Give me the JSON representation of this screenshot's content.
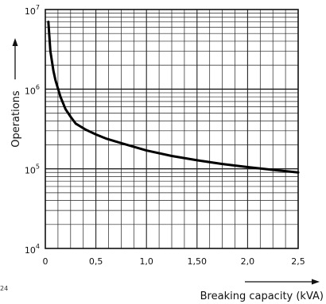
{
  "chart_data": {
    "type": "line",
    "xlabel": "Breaking capacity (kVA)",
    "ylabel": "Operations",
    "x_scale": "linear",
    "y_scale": "log",
    "xlim": [
      0,
      2.5
    ],
    "ylim": [
      10000,
      10000000
    ],
    "x_ticks": [
      {
        "value": 0,
        "label": "0"
      },
      {
        "value": 0.5,
        "label": "0,5"
      },
      {
        "value": 1.0,
        "label": "1,0"
      },
      {
        "value": 1.5,
        "label": "1,50"
      },
      {
        "value": 2.0,
        "label": "2,0"
      },
      {
        "value": 2.5,
        "label": "2,5"
      }
    ],
    "y_ticks": [
      {
        "value": 10000,
        "base": "10",
        "exp": "4"
      },
      {
        "value": 100000,
        "base": "10",
        "exp": "5"
      },
      {
        "value": 1000000,
        "base": "10",
        "exp": "6"
      },
      {
        "value": 10000000,
        "base": "10",
        "exp": "7"
      }
    ],
    "grid": true,
    "series": [
      {
        "x": [
          0.03,
          0.05,
          0.08,
          0.1,
          0.15,
          0.2,
          0.25,
          0.3,
          0.4,
          0.5,
          0.6,
          0.75,
          1.0,
          1.25,
          1.5,
          1.75,
          2.0,
          2.25,
          2.5
        ],
        "y": [
          7000000,
          3000000,
          1700000,
          1300000,
          800000,
          560000,
          450000,
          370000,
          310000,
          270000,
          240000,
          210000,
          170000,
          145000,
          128000,
          115000,
          105000,
          97000,
          90000
        ]
      }
    ],
    "corner_note": "24"
  }
}
